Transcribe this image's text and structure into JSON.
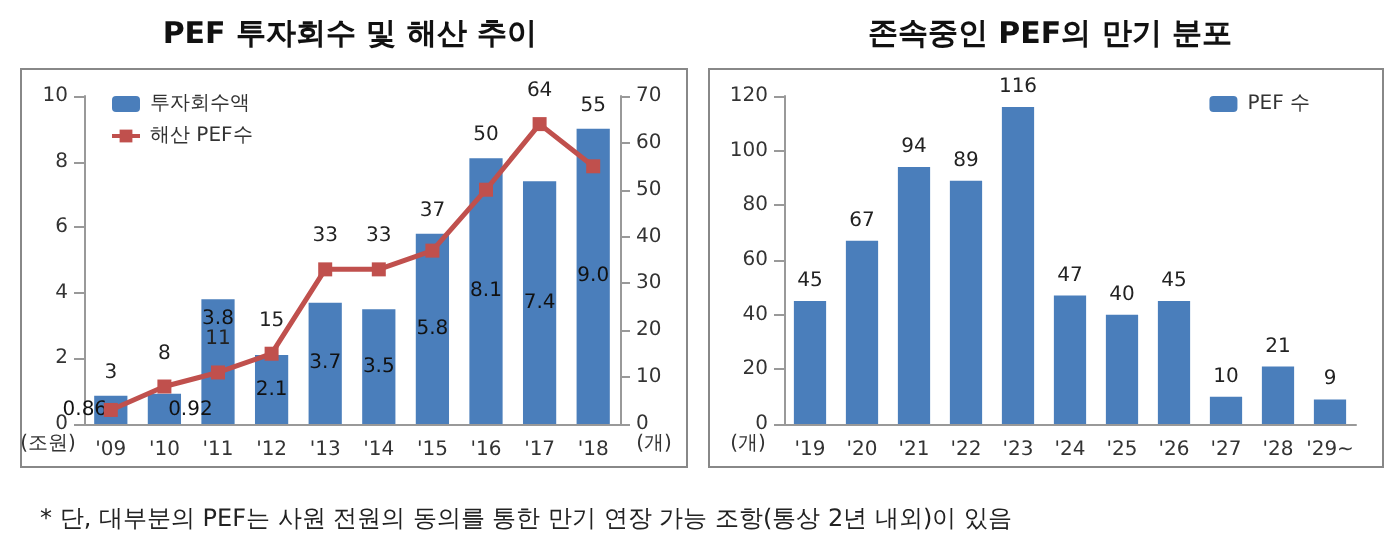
{
  "chart_data": [
    {
      "type": "bar",
      "title": "PEF 투자회수 및 해산 추이",
      "categories": [
        "'09",
        "'10",
        "'11",
        "'12",
        "'13",
        "'14",
        "'15",
        "'16",
        "'17",
        "'18"
      ],
      "ylabel": "(조원)",
      "y2label": "(개)",
      "ylim": [
        0,
        10
      ],
      "yticks": [
        0,
        2,
        4,
        6,
        8,
        10
      ],
      "y2lim": [
        0,
        70
      ],
      "y2ticks": [
        0,
        10,
        20,
        30,
        40,
        50,
        60,
        70
      ],
      "legend": "top left",
      "grid": false,
      "series": [
        {
          "type": "bar",
          "name": "투자회수액",
          "color": "#4a7ebb",
          "values": [
            0.86,
            0.92,
            3.8,
            2.1,
            3.7,
            3.5,
            5.8,
            8.1,
            7.4,
            9.0
          ],
          "value_labels": [
            "0.86",
            "0.92",
            "3.8",
            "2.1",
            "3.7",
            "3.5",
            "5.8",
            "8.1",
            "7.4",
            "9.0"
          ]
        },
        {
          "type": "line",
          "name": "해산 PEF수",
          "color": "#c0504d",
          "axis": "y2",
          "marker": "square",
          "line_style": "solid",
          "values": [
            3,
            8,
            11,
            15,
            33,
            33,
            37,
            50,
            64,
            55
          ],
          "data_labels": true
        }
      ]
    },
    {
      "type": "bar",
      "title": "존속중인 PEF의 만기 분포",
      "categories": [
        "'19",
        "'20",
        "'21",
        "'22",
        "'23",
        "'24",
        "'25",
        "'26",
        "'27",
        "'28",
        "'29~"
      ],
      "ylabel": "(개)",
      "ylim": [
        0,
        120
      ],
      "yticks": [
        0,
        20,
        40,
        60,
        80,
        100,
        120
      ],
      "legend": "top right",
      "grid": false,
      "data_labels": true,
      "series": [
        {
          "name": "PEF 수",
          "color": "#4a7ebb",
          "values": [
            45,
            67,
            94,
            89,
            116,
            47,
            40,
            45,
            10,
            21,
            9
          ]
        }
      ],
      "annotations": [
        "* 단, 대부분의 PEF는 사원 전원의 동의를 통한 만기 연장 가능 조항(통상 2년 내외)이 있음"
      ]
    }
  ]
}
